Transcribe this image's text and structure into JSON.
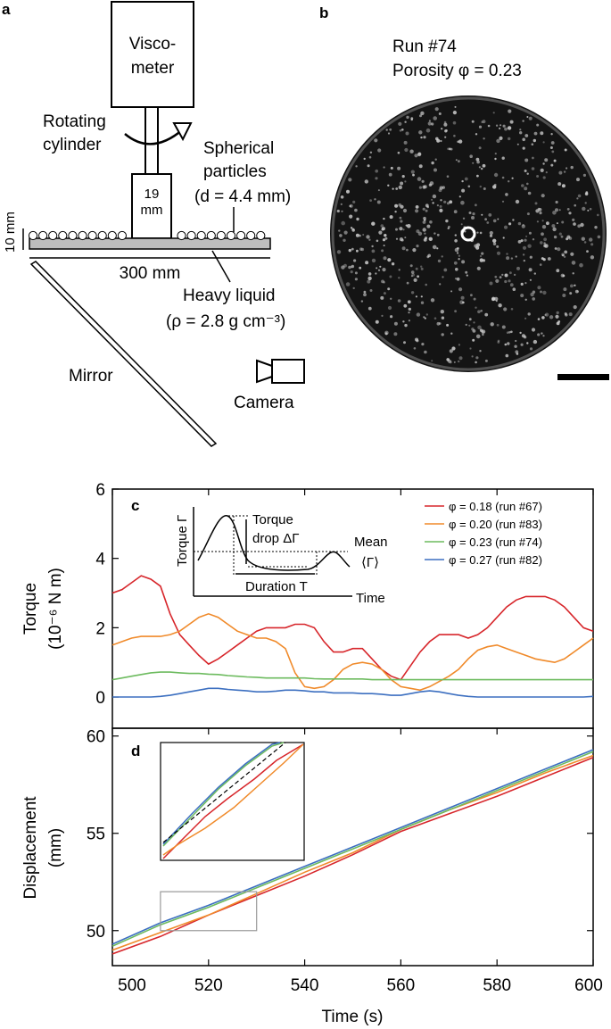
{
  "panel_a": {
    "letter": "a",
    "viscometer_line1": "Visco-",
    "viscometer_line2": "meter",
    "rotating_line1": "Rotating",
    "rotating_line2": "cylinder",
    "particles_line1": "Spherical",
    "particles_line2": "particles",
    "particles_line3": "(d = 4.4 mm)",
    "cyl_size_line1": "19",
    "cyl_size_line2": "mm",
    "depth_label": "10 mm",
    "width_label": "300 mm",
    "liquid_line1": "Heavy liquid",
    "liquid_line2": "(ρ = 2.8 g cm⁻³)",
    "mirror_label": "Mirror",
    "camera_label": "Camera"
  },
  "panel_b": {
    "letter": "b",
    "run_label": "Run #74",
    "porosity_label": "Porosity φ = 0.23"
  },
  "colors": {
    "run67": "#d7262b",
    "run83": "#f08a2a",
    "run74": "#6dbb5f",
    "run82": "#3c6fc0",
    "frame": "#000000",
    "zoom_box": "#999999"
  },
  "chart_data": [
    {
      "type": "line",
      "panel": "c",
      "ylabel_line1": "Torque",
      "ylabel_line2": "(10⁻⁶ N m)",
      "yticks": [
        "0",
        "2",
        "4",
        "6"
      ],
      "ylim": [
        -0.9,
        6
      ],
      "xlim": [
        500,
        600
      ],
      "legend_position": "top-right",
      "x": [
        500,
        502,
        504,
        506,
        508,
        510,
        512,
        514,
        516,
        518,
        520,
        522,
        524,
        526,
        528,
        530,
        532,
        534,
        536,
        538,
        540,
        542,
        544,
        546,
        548,
        550,
        552,
        554,
        556,
        558,
        560,
        562,
        564,
        566,
        568,
        570,
        572,
        574,
        576,
        578,
        580,
        582,
        584,
        586,
        588,
        590,
        592,
        594,
        596,
        598,
        600
      ],
      "series": [
        {
          "name": "φ = 0.18 (run #67)",
          "color_key": "run67",
          "values": [
            3.0,
            3.1,
            3.3,
            3.5,
            3.4,
            3.2,
            2.4,
            1.8,
            1.5,
            1.2,
            0.95,
            1.1,
            1.3,
            1.5,
            1.7,
            1.9,
            2.0,
            2.0,
            2.0,
            2.1,
            2.1,
            2.0,
            1.6,
            1.3,
            1.3,
            1.4,
            1.4,
            1.1,
            0.8,
            0.6,
            0.5,
            0.9,
            1.3,
            1.6,
            1.8,
            1.8,
            1.8,
            1.7,
            1.8,
            2.0,
            2.3,
            2.6,
            2.8,
            2.9,
            2.9,
            2.9,
            2.8,
            2.6,
            2.3,
            2.0,
            1.9
          ]
        },
        {
          "name": "φ = 0.20 (run #83)",
          "color_key": "run83",
          "values": [
            1.5,
            1.6,
            1.7,
            1.75,
            1.75,
            1.75,
            1.8,
            1.9,
            2.1,
            2.3,
            2.4,
            2.3,
            2.1,
            1.9,
            1.8,
            1.7,
            1.7,
            1.6,
            1.4,
            0.7,
            0.3,
            0.25,
            0.3,
            0.5,
            0.8,
            0.95,
            1.0,
            0.95,
            0.8,
            0.5,
            0.3,
            0.25,
            0.2,
            0.3,
            0.45,
            0.6,
            0.8,
            1.1,
            1.35,
            1.45,
            1.5,
            1.4,
            1.3,
            1.2,
            1.1,
            1.05,
            1.0,
            1.1,
            1.3,
            1.5,
            1.7
          ]
        },
        {
          "name": "φ = 0.23 (run #74)",
          "color_key": "run74",
          "values": [
            0.5,
            0.55,
            0.6,
            0.65,
            0.7,
            0.72,
            0.72,
            0.7,
            0.68,
            0.68,
            0.66,
            0.65,
            0.62,
            0.6,
            0.58,
            0.57,
            0.55,
            0.55,
            0.55,
            0.55,
            0.55,
            0.53,
            0.52,
            0.52,
            0.52,
            0.52,
            0.52,
            0.5,
            0.5,
            0.5,
            0.5,
            0.5,
            0.5,
            0.5,
            0.5,
            0.5,
            0.5,
            0.5,
            0.5,
            0.5,
            0.5,
            0.5,
            0.5,
            0.5,
            0.5,
            0.5,
            0.5,
            0.5,
            0.5,
            0.5,
            0.5
          ]
        },
        {
          "name": "φ = 0.27 (run #82)",
          "color_key": "run82",
          "values": [
            0.0,
            0.0,
            0.0,
            0.0,
            0.0,
            0.02,
            0.05,
            0.1,
            0.15,
            0.2,
            0.25,
            0.25,
            0.22,
            0.2,
            0.18,
            0.15,
            0.15,
            0.17,
            0.2,
            0.2,
            0.18,
            0.15,
            0.15,
            0.12,
            0.12,
            0.12,
            0.1,
            0.1,
            0.08,
            0.05,
            0.05,
            0.1,
            0.15,
            0.18,
            0.15,
            0.1,
            0.05,
            0.02,
            0.0,
            0.0,
            0.0,
            0.0,
            0.0,
            0.0,
            0.0,
            0.0,
            0.0,
            0.0,
            0.0,
            0.0,
            0.02
          ]
        }
      ],
      "inset": {
        "ylabel": "Torque Γ",
        "xlabel": "Time",
        "torque_drop_line1": "Torque",
        "torque_drop_line2": "drop ΔΓ",
        "mean_line1": "Mean",
        "mean_line2": "⟨Γ⟩",
        "duration_label": "Duration T"
      }
    },
    {
      "type": "line",
      "panel": "d",
      "ylabel_line1": "Displacement",
      "ylabel_line2": "(mm)",
      "xlabel": "Time (s)",
      "xlim": [
        500,
        600
      ],
      "ylim": [
        48.2,
        60.4
      ],
      "xticks": [
        "500",
        "520",
        "540",
        "560",
        "580",
        "600"
      ],
      "yticks": [
        "50",
        "55",
        "60"
      ],
      "x": [
        500,
        510,
        520,
        530,
        540,
        550,
        560,
        570,
        580,
        590,
        600
      ],
      "series": [
        {
          "color_key": "run67",
          "values": [
            48.8,
            49.7,
            50.8,
            51.8,
            52.8,
            53.9,
            55.1,
            56.0,
            56.9,
            57.9,
            58.9
          ]
        },
        {
          "color_key": "run83",
          "values": [
            49.0,
            49.9,
            50.8,
            51.9,
            53.0,
            54.0,
            55.2,
            56.2,
            57.1,
            58.1,
            59.0
          ]
        },
        {
          "color_key": "run74",
          "values": [
            49.2,
            50.3,
            51.2,
            52.2,
            53.2,
            54.2,
            55.2,
            56.2,
            57.2,
            58.2,
            59.2
          ]
        },
        {
          "color_key": "run82",
          "values": [
            49.3,
            50.4,
            51.3,
            52.3,
            53.3,
            54.3,
            55.3,
            56.3,
            57.3,
            58.3,
            59.3
          ]
        }
      ],
      "zoom_box": {
        "x": [
          510,
          530
        ],
        "y": [
          50,
          52
        ]
      }
    }
  ]
}
